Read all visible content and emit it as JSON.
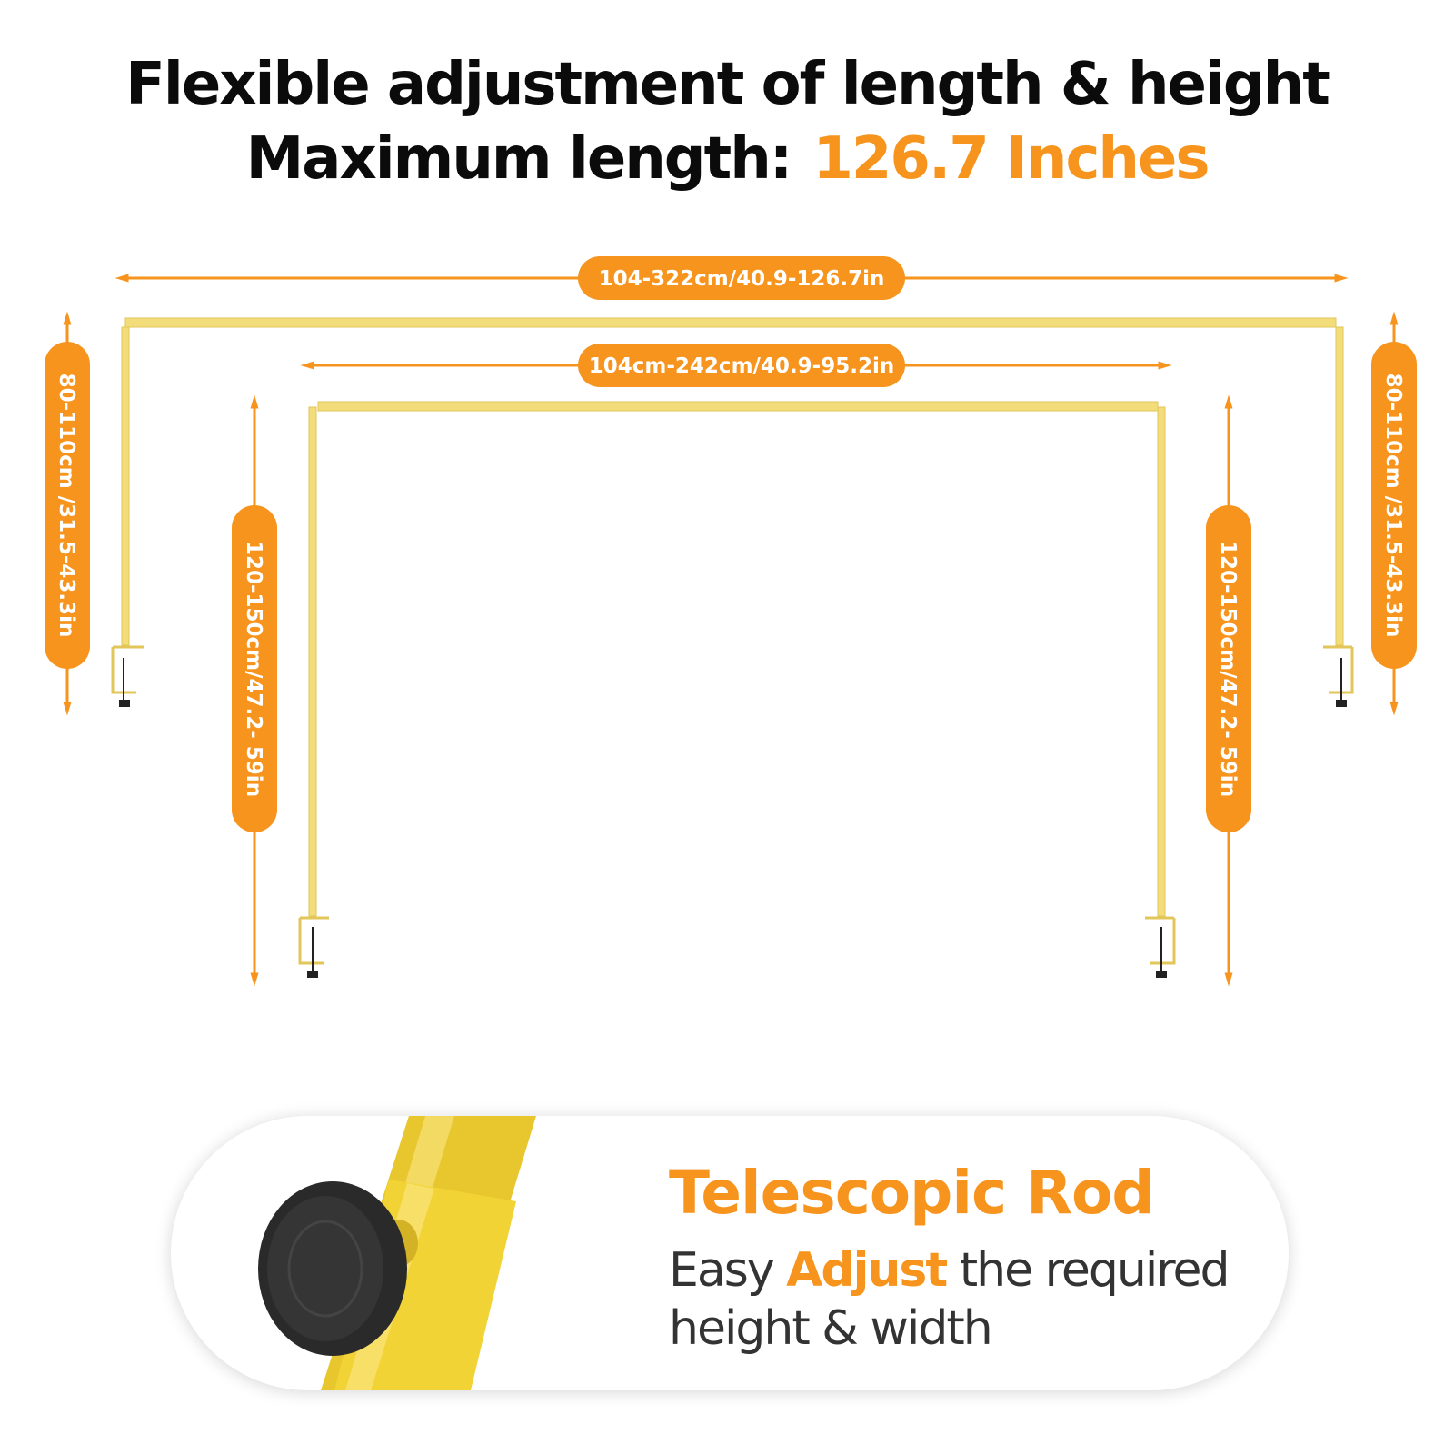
{
  "headline": {
    "line1": "Flexible adjustment of length & height",
    "line2_prefix": "Maximum length:",
    "line2_value": "126.7 Inches"
  },
  "dimensions": {
    "outer_width": "104-322cm/40.9-126.7in",
    "inner_width": "104cm-242cm/40.9-95.2in",
    "outer_height_left": "80-110cm /31.5-43.3in",
    "outer_height_right": "80-110cm /31.5-43.3in",
    "inner_height_left": "120-150cm/47.2- 59in",
    "inner_height_right": "120-150cm/47.2- 59in"
  },
  "feature": {
    "title": "Telescopic Rod",
    "desc_easy": "Easy",
    "desc_adjust": "Adjust",
    "desc_rest": "the required height & width"
  },
  "colors": {
    "accent": "#f7941d",
    "rod_gold": "#f3dc7a",
    "text_dark": "#0b0b0b",
    "knob": "#2a2a2a"
  }
}
